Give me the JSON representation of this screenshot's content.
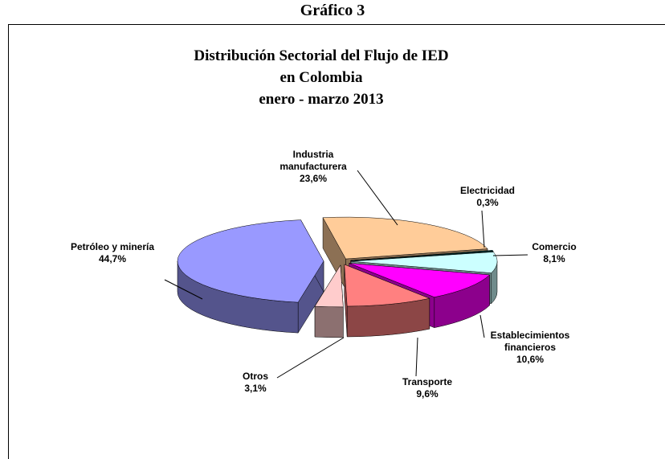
{
  "heading": "Gráfico 3",
  "chart_data": {
    "type": "pie3d",
    "title": [
      "Distribución Sectorial del Flujo de IED",
      "en Colombia",
      "enero - marzo 2013"
    ],
    "categories": [
      "Industria manufacturera",
      "Electricidad",
      "Comercio",
      "Establecimientos financieros",
      "Transporte",
      "Otros",
      "Petróleo y minería"
    ],
    "values": [
      23.6,
      0.3,
      8.1,
      10.6,
      9.6,
      3.1,
      44.7
    ],
    "value_labels": [
      "23,6%",
      "0,3%",
      "8,1%",
      "10,6%",
      "9,6%",
      "3,1%",
      "44,7%"
    ],
    "colors": [
      "#FFCC99",
      "#006666",
      "#CCFFFF",
      "#FF00FF",
      "#FF8080",
      "#FFCCCC",
      "#9999FF"
    ]
  }
}
